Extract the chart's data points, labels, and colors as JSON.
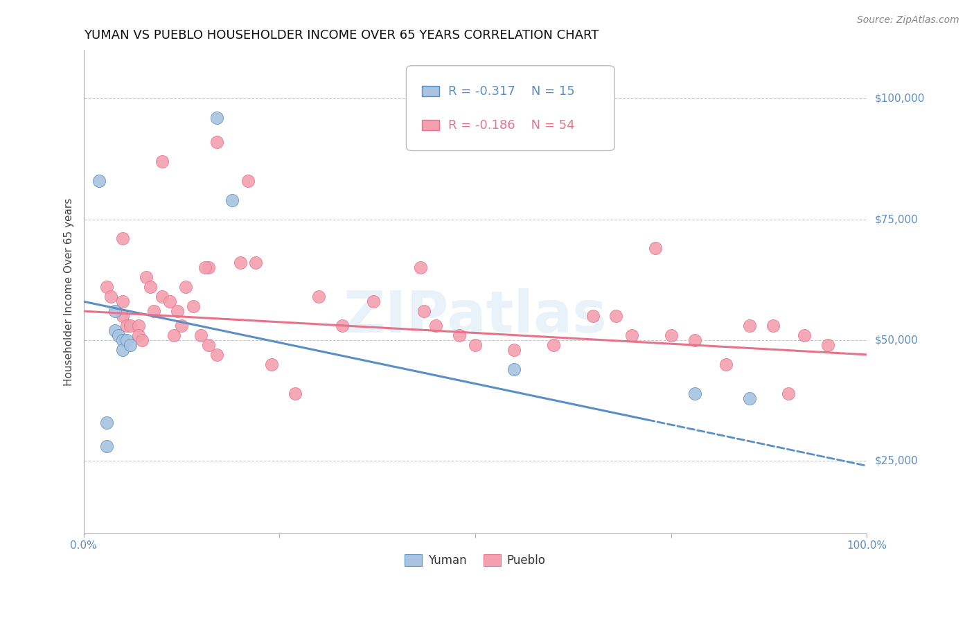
{
  "title": "YUMAN VS PUEBLO HOUSEHOLDER INCOME OVER 65 YEARS CORRELATION CHART",
  "source": "Source: ZipAtlas.com",
  "ylabel": "Householder Income Over 65 years",
  "xlim": [
    0,
    1.0
  ],
  "ylim": [
    10000,
    110000
  ],
  "ytick_labels": [
    "$25,000",
    "$50,000",
    "$75,000",
    "$100,000"
  ],
  "ytick_values": [
    25000,
    50000,
    75000,
    100000
  ],
  "watermark": "ZIPatlas",
  "legend": {
    "R_yuman": "-0.317",
    "N_yuman": "15",
    "R_pueblo": "-0.186",
    "N_pueblo": "54"
  },
  "yuman_color": "#a8c4e0",
  "pueblo_color": "#f4a0b0",
  "yuman_line_color": "#5b8ec4",
  "pueblo_line_color": "#e8728a",
  "background_color": "#ffffff",
  "grid_color": "#c8c8c8",
  "yuman_scatter": [
    [
      0.02,
      83000
    ],
    [
      0.17,
      96000
    ],
    [
      0.19,
      79000
    ],
    [
      0.04,
      56000
    ],
    [
      0.04,
      52000
    ],
    [
      0.045,
      51000
    ],
    [
      0.05,
      50000
    ],
    [
      0.05,
      48000
    ],
    [
      0.055,
      50000
    ],
    [
      0.06,
      49000
    ],
    [
      0.03,
      33000
    ],
    [
      0.03,
      28000
    ],
    [
      0.55,
      44000
    ],
    [
      0.78,
      39000
    ],
    [
      0.85,
      38000
    ]
  ],
  "pueblo_scatter": [
    [
      0.05,
      71000
    ],
    [
      0.1,
      87000
    ],
    [
      0.17,
      91000
    ],
    [
      0.16,
      65000
    ],
    [
      0.21,
      83000
    ],
    [
      0.22,
      66000
    ],
    [
      0.03,
      61000
    ],
    [
      0.035,
      59000
    ],
    [
      0.05,
      58000
    ],
    [
      0.05,
      55000
    ],
    [
      0.055,
      53000
    ],
    [
      0.06,
      53000
    ],
    [
      0.07,
      53000
    ],
    [
      0.07,
      51000
    ],
    [
      0.075,
      50000
    ],
    [
      0.08,
      63000
    ],
    [
      0.085,
      61000
    ],
    [
      0.09,
      56000
    ],
    [
      0.1,
      59000
    ],
    [
      0.11,
      58000
    ],
    [
      0.115,
      51000
    ],
    [
      0.12,
      56000
    ],
    [
      0.125,
      53000
    ],
    [
      0.13,
      61000
    ],
    [
      0.14,
      57000
    ],
    [
      0.15,
      51000
    ],
    [
      0.155,
      65000
    ],
    [
      0.16,
      49000
    ],
    [
      0.17,
      47000
    ],
    [
      0.2,
      66000
    ],
    [
      0.24,
      45000
    ],
    [
      0.27,
      39000
    ],
    [
      0.3,
      59000
    ],
    [
      0.33,
      53000
    ],
    [
      0.37,
      58000
    ],
    [
      0.43,
      65000
    ],
    [
      0.435,
      56000
    ],
    [
      0.45,
      53000
    ],
    [
      0.48,
      51000
    ],
    [
      0.5,
      49000
    ],
    [
      0.55,
      48000
    ],
    [
      0.6,
      49000
    ],
    [
      0.65,
      55000
    ],
    [
      0.68,
      55000
    ],
    [
      0.7,
      51000
    ],
    [
      0.73,
      69000
    ],
    [
      0.75,
      51000
    ],
    [
      0.78,
      50000
    ],
    [
      0.82,
      45000
    ],
    [
      0.85,
      53000
    ],
    [
      0.88,
      53000
    ],
    [
      0.9,
      39000
    ],
    [
      0.92,
      51000
    ],
    [
      0.95,
      49000
    ]
  ],
  "yuman_trend_x": [
    0.0,
    1.0
  ],
  "yuman_trend_y": [
    58000,
    24000
  ],
  "yuman_trend_solid_end_x": 0.72,
  "pueblo_trend_x": [
    0.0,
    1.0
  ],
  "pueblo_trend_y": [
    56000,
    47000
  ],
  "title_fontsize": 13,
  "label_fontsize": 11,
  "tick_fontsize": 11,
  "legend_fontsize": 13,
  "source_fontsize": 10
}
